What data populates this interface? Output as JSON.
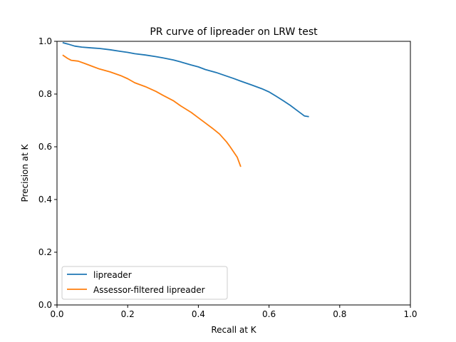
{
  "chart_data": {
    "type": "line",
    "title": "PR curve of lipreader on LRW test",
    "xlabel": "Recall at K",
    "ylabel": "Precision at K",
    "xlim": [
      0.0,
      1.0
    ],
    "ylim": [
      0.0,
      1.0
    ],
    "xticks": [
      "0.0",
      "0.2",
      "0.4",
      "0.6",
      "0.8",
      "1.0"
    ],
    "yticks": [
      "0.0",
      "0.2",
      "0.4",
      "0.6",
      "0.8",
      "1.0"
    ],
    "grid": false,
    "legend_position": "lower-left",
    "series": [
      {
        "name": "lipreader",
        "color": "#1f77b4",
        "x": [
          0.016,
          0.03,
          0.05,
          0.07,
          0.1,
          0.12,
          0.15,
          0.18,
          0.2,
          0.22,
          0.25,
          0.28,
          0.3,
          0.33,
          0.35,
          0.38,
          0.4,
          0.42,
          0.45,
          0.48,
          0.5,
          0.52,
          0.55,
          0.58,
          0.6,
          0.62,
          0.64,
          0.66,
          0.68,
          0.7,
          0.713
        ],
        "y": [
          0.995,
          0.99,
          0.982,
          0.978,
          0.975,
          0.973,
          0.968,
          0.962,
          0.958,
          0.953,
          0.948,
          0.942,
          0.937,
          0.929,
          0.922,
          0.91,
          0.903,
          0.893,
          0.882,
          0.868,
          0.859,
          0.849,
          0.835,
          0.82,
          0.808,
          0.792,
          0.775,
          0.757,
          0.737,
          0.717,
          0.714
        ]
      },
      {
        "name": "Assessor-filtered lipreader",
        "color": "#ff7f0e",
        "x": [
          0.016,
          0.03,
          0.04,
          0.06,
          0.08,
          0.1,
          0.12,
          0.15,
          0.18,
          0.2,
          0.22,
          0.25,
          0.28,
          0.3,
          0.33,
          0.35,
          0.38,
          0.4,
          0.42,
          0.44,
          0.46,
          0.48,
          0.49,
          0.5,
          0.51,
          0.52
        ],
        "y": [
          0.948,
          0.935,
          0.928,
          0.925,
          0.915,
          0.905,
          0.895,
          0.884,
          0.87,
          0.858,
          0.843,
          0.828,
          0.81,
          0.795,
          0.774,
          0.755,
          0.73,
          0.71,
          0.69,
          0.67,
          0.648,
          0.618,
          0.6,
          0.58,
          0.56,
          0.524
        ]
      }
    ]
  }
}
